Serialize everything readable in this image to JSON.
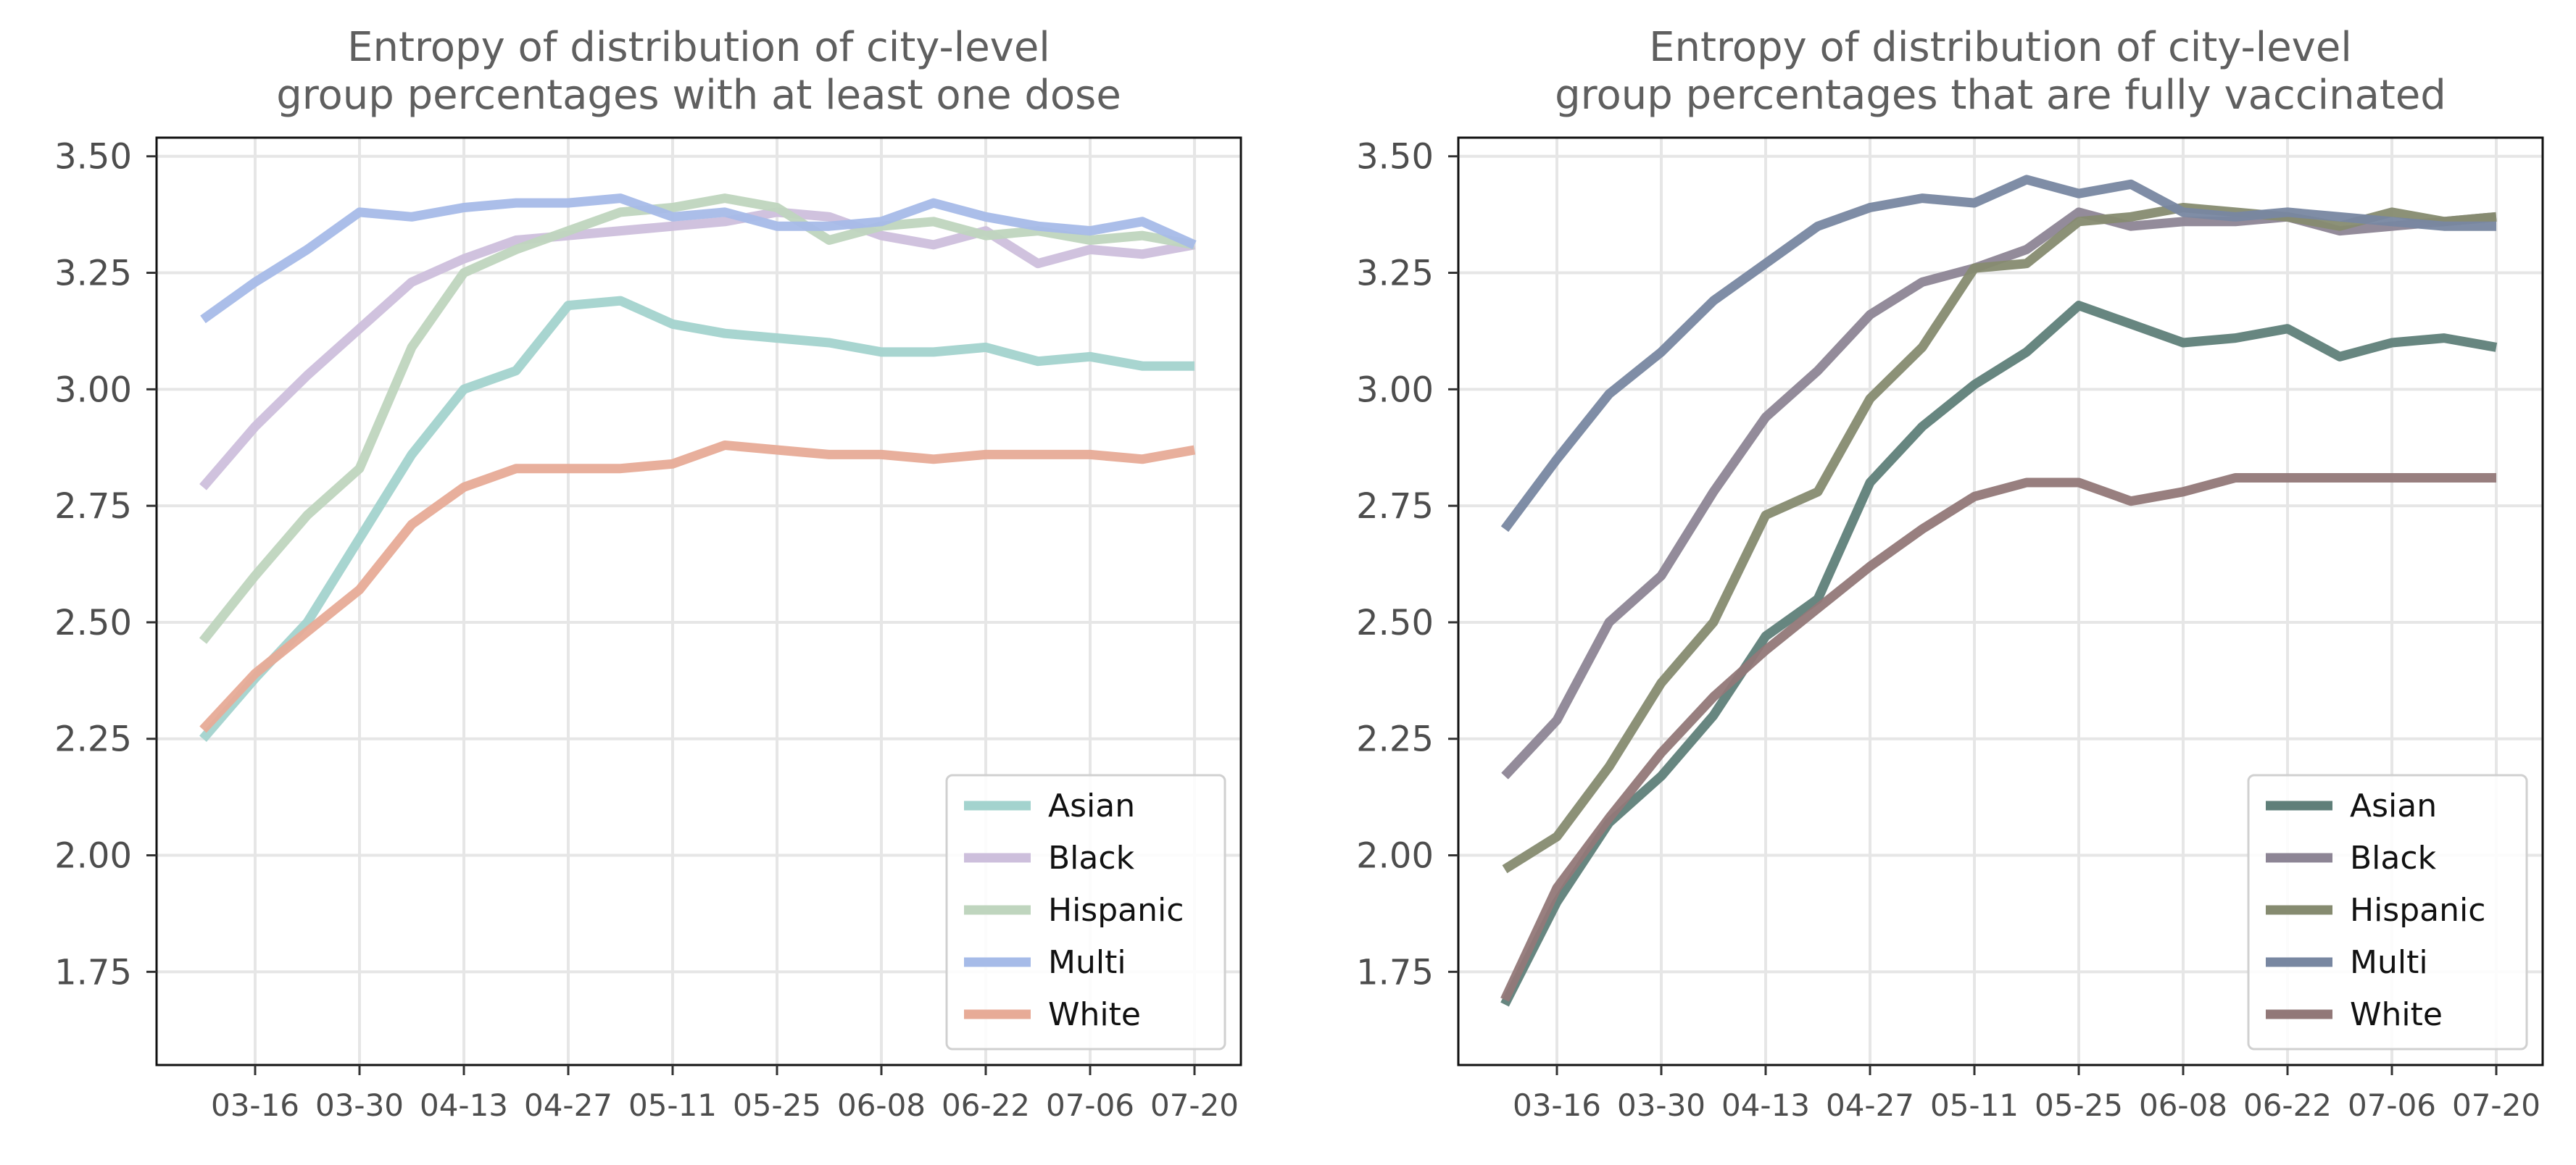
{
  "chart_data": [
    {
      "type": "line",
      "title": "Entropy of distribution of city-level\ngroup percentages with at least one dose",
      "xlabel": "",
      "ylabel": "",
      "x": [
        "03-09",
        "03-16",
        "03-23",
        "03-30",
        "04-06",
        "04-13",
        "04-20",
        "04-27",
        "05-04",
        "05-11",
        "05-18",
        "05-25",
        "06-01",
        "06-08",
        "06-15",
        "06-22",
        "06-29",
        "07-06",
        "07-13",
        "07-20"
      ],
      "xticks": [
        "03-16",
        "03-30",
        "04-13",
        "04-27",
        "05-11",
        "05-25",
        "06-08",
        "06-22",
        "07-06",
        "07-20"
      ],
      "yticks": [
        "1.75",
        "2.00",
        "2.25",
        "2.50",
        "2.75",
        "3.00",
        "3.25",
        "3.50"
      ],
      "ylim": [
        1.55,
        3.54
      ],
      "grid": true,
      "legend_position": "lower right",
      "series": [
        {
          "name": "Asian",
          "color": "#a3d3ce",
          "values": [
            2.25,
            2.38,
            2.5,
            2.68,
            2.86,
            3.0,
            3.04,
            3.18,
            3.19,
            3.14,
            3.12,
            3.11,
            3.1,
            3.08,
            3.08,
            3.09,
            3.06,
            3.07,
            3.05,
            3.05
          ]
        },
        {
          "name": "Black",
          "color": "#cdbfdc",
          "values": [
            2.79,
            2.92,
            3.03,
            3.13,
            3.23,
            3.28,
            3.32,
            3.33,
            3.34,
            3.35,
            3.36,
            3.38,
            3.37,
            3.33,
            3.31,
            3.34,
            3.27,
            3.3,
            3.29,
            3.31
          ]
        },
        {
          "name": "Hispanic",
          "color": "#bfd5be",
          "values": [
            2.46,
            2.6,
            2.73,
            2.83,
            3.09,
            3.25,
            3.3,
            3.34,
            3.38,
            3.39,
            3.41,
            3.39,
            3.32,
            3.35,
            3.36,
            3.33,
            3.34,
            3.32,
            3.33,
            3.31
          ]
        },
        {
          "name": "Multi",
          "color": "#a6bbe8",
          "values": [
            3.15,
            3.23,
            3.3,
            3.38,
            3.37,
            3.39,
            3.4,
            3.4,
            3.41,
            3.37,
            3.38,
            3.35,
            3.35,
            3.36,
            3.4,
            3.37,
            3.35,
            3.34,
            3.36,
            3.31
          ]
        },
        {
          "name": "White",
          "color": "#e7ab97",
          "values": [
            2.27,
            2.39,
            2.48,
            2.57,
            2.71,
            2.79,
            2.83,
            2.83,
            2.83,
            2.84,
            2.88,
            2.87,
            2.86,
            2.86,
            2.85,
            2.86,
            2.86,
            2.86,
            2.85,
            2.87
          ]
        }
      ]
    },
    {
      "type": "line",
      "title": "Entropy of distribution of city-level\ngroup percentages that are fully vaccinated",
      "xlabel": "",
      "ylabel": "",
      "x": [
        "03-09",
        "03-16",
        "03-23",
        "03-30",
        "04-06",
        "04-13",
        "04-20",
        "04-27",
        "05-04",
        "05-11",
        "05-18",
        "05-25",
        "06-01",
        "06-08",
        "06-15",
        "06-22",
        "06-29",
        "07-06",
        "07-13",
        "07-20"
      ],
      "xticks": [
        "03-16",
        "03-30",
        "04-13",
        "04-27",
        "05-11",
        "05-25",
        "06-08",
        "06-22",
        "07-06",
        "07-20"
      ],
      "yticks": [
        "1.75",
        "2.00",
        "2.25",
        "2.50",
        "2.75",
        "3.00",
        "3.25",
        "3.50"
      ],
      "ylim": [
        1.55,
        3.54
      ],
      "grid": true,
      "legend_position": "lower right",
      "series": [
        {
          "name": "Asian",
          "color": "#5f7f79",
          "values": [
            1.68,
            1.9,
            2.07,
            2.17,
            2.3,
            2.47,
            2.55,
            2.8,
            2.92,
            3.01,
            3.08,
            3.18,
            3.14,
            3.1,
            3.11,
            3.13,
            3.07,
            3.1,
            3.11,
            3.09
          ]
        },
        {
          "name": "Black",
          "color": "#8d8595",
          "values": [
            2.17,
            2.29,
            2.5,
            2.6,
            2.78,
            2.94,
            3.04,
            3.16,
            3.23,
            3.26,
            3.3,
            3.38,
            3.35,
            3.36,
            3.36,
            3.37,
            3.34,
            3.35,
            3.36,
            3.37
          ]
        },
        {
          "name": "Hispanic",
          "color": "#868b70",
          "values": [
            1.97,
            2.04,
            2.19,
            2.37,
            2.5,
            2.73,
            2.78,
            2.98,
            3.09,
            3.26,
            3.27,
            3.36,
            3.37,
            3.39,
            3.38,
            3.37,
            3.35,
            3.38,
            3.36,
            3.37
          ]
        },
        {
          "name": "Multi",
          "color": "#7887a1",
          "values": [
            2.7,
            2.85,
            2.99,
            3.08,
            3.19,
            3.27,
            3.35,
            3.39,
            3.41,
            3.4,
            3.45,
            3.42,
            3.44,
            3.38,
            3.37,
            3.38,
            3.37,
            3.36,
            3.35,
            3.35
          ]
        },
        {
          "name": "White",
          "color": "#927878",
          "values": [
            1.69,
            1.93,
            2.08,
            2.22,
            2.34,
            2.44,
            2.53,
            2.62,
            2.7,
            2.77,
            2.8,
            2.8,
            2.76,
            2.78,
            2.81,
            2.81,
            2.81,
            2.81,
            2.81,
            2.81
          ]
        }
      ]
    }
  ]
}
